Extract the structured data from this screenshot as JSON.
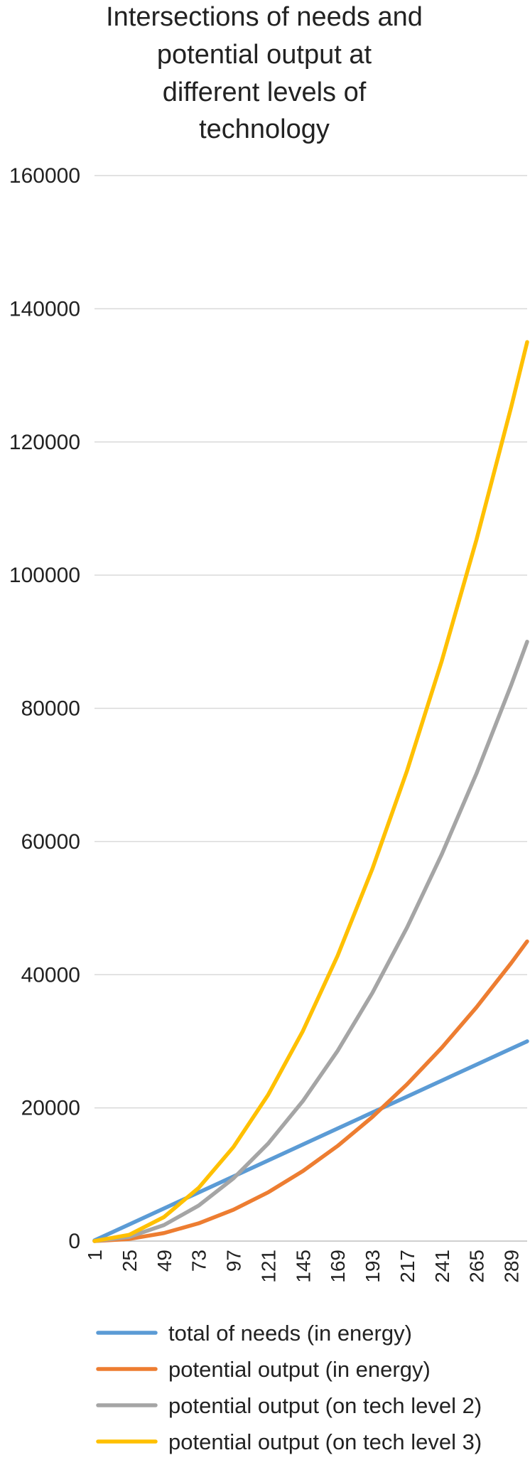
{
  "chart_data": {
    "type": "line",
    "title": "Intersections of needs and potential output at different levels of technology",
    "title_lines": [
      "Intersections of needs and",
      "potential output at",
      "different levels of",
      "technology"
    ],
    "xlabel": "",
    "ylabel": "",
    "x_range": [
      1,
      300
    ],
    "ylim": [
      0,
      160000
    ],
    "y_ticks": [
      "0",
      "20000",
      "40000",
      "60000",
      "80000",
      "100000",
      "120000",
      "140000",
      "160000"
    ],
    "x_ticks": [
      "1",
      "25",
      "49",
      "73",
      "97",
      "121",
      "145",
      "169",
      "193",
      "217",
      "241",
      "265",
      "289"
    ],
    "grid": true,
    "legend_position": "bottom",
    "x": [
      1,
      25,
      49,
      73,
      97,
      121,
      145,
      169,
      193,
      217,
      241,
      265,
      289,
      300
    ],
    "series": [
      {
        "name": "total of needs (in energy)",
        "color": "#5b9bd5",
        "values": [
          100,
          2500,
          4900,
          7300,
          9700,
          12100,
          14500,
          16900,
          19300,
          21700,
          24100,
          26500,
          28900,
          30000
        ]
      },
      {
        "name": "potential output (in energy)",
        "color": "#ed7d31",
        "values": [
          1,
          313,
          1201,
          2665,
          4705,
          7321,
          10513,
          14281,
          18625,
          23545,
          29041,
          35113,
          41761,
          45000
        ]
      },
      {
        "name": "potential output (on tech level 2)",
        "color": "#a5a5a5",
        "values": [
          2,
          625,
          2401,
          5329,
          9409,
          14641,
          21025,
          28561,
          37249,
          47089,
          58081,
          70225,
          83521,
          90000
        ]
      },
      {
        "name": "potential output (on tech level 3)",
        "color": "#ffc000",
        "values": [
          3,
          938,
          3602,
          7994,
          14114,
          21962,
          31538,
          42842,
          55874,
          70634,
          87122,
          105338,
          125282,
          135000
        ]
      }
    ]
  }
}
